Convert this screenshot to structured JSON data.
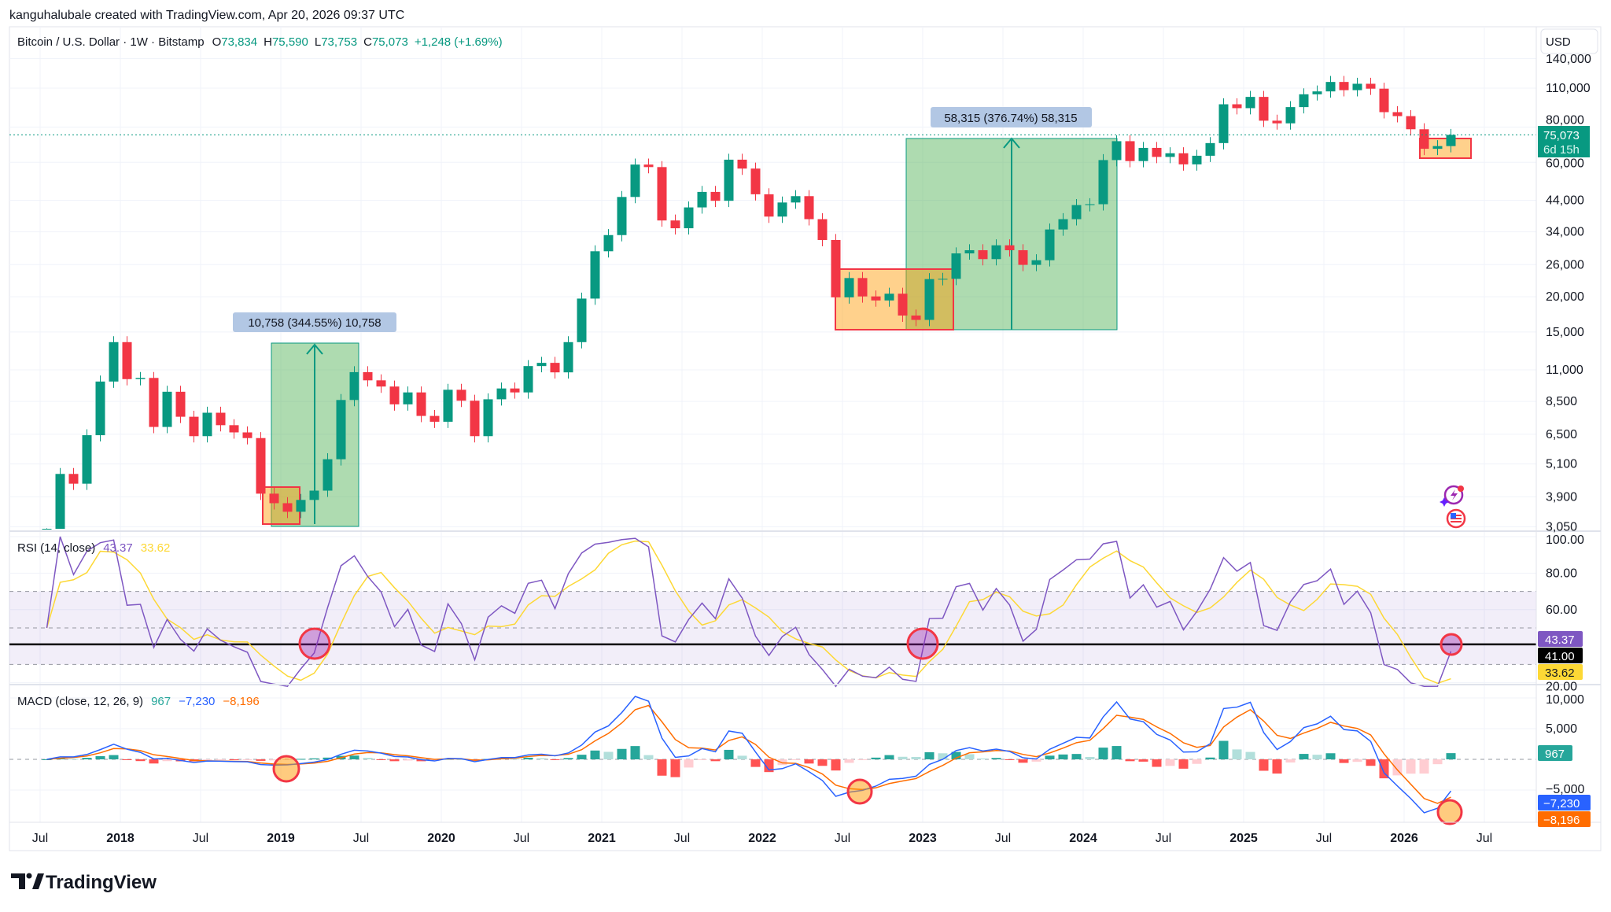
{
  "attribution": "kanguhalubale created with TradingView.com, Apr 20, 2026 09:37 UTC",
  "legend": {
    "symbol": "Bitcoin / U.S. Dollar · 1W · Bitstamp",
    "open_label": "O",
    "open": "73,834",
    "high_label": "H",
    "high": "75,590",
    "low_label": "L",
    "low": "73,753",
    "close_label": "C",
    "close": "75,073",
    "change": "+1,248 (+1.69%)"
  },
  "currency_button": "USD",
  "price_axis": {
    "scale": "log",
    "ticks": [
      "140,000",
      "110,000",
      "80,000",
      "60,000",
      "44,000",
      "34,000",
      "26,000",
      "20,000",
      "15,000",
      "11,000",
      "8,500",
      "6,500",
      "5,100",
      "3,900",
      "3,050"
    ],
    "tick_values": [
      140000,
      110000,
      80000,
      60000,
      44000,
      34000,
      26000,
      20000,
      15000,
      11000,
      8500,
      6500,
      5100,
      3900,
      3050
    ],
    "last_price": "75,073",
    "countdown": "6d 15h"
  },
  "time_axis": [
    "Jul",
    "2018",
    "Jul",
    "2019",
    "Jul",
    "2020",
    "Jul",
    "2021",
    "Jul",
    "2022",
    "Jul",
    "2023",
    "Jul",
    "2024",
    "Jul",
    "2025",
    "Jul",
    "2026",
    "Jul"
  ],
  "annotations": {
    "measure_1": "10,758 (344.55%) 10,758",
    "measure_2": "58,315 (376.74%) 58,315"
  },
  "rsi": {
    "title": "RSI (14, close)",
    "value": "43.37",
    "ma": "33.62",
    "level": "41.00",
    "ticks": [
      "100.00",
      "80.00",
      "60.00",
      "20.00"
    ],
    "tick_values": [
      100,
      80,
      60,
      20
    ],
    "band": [
      30,
      70
    ],
    "level_value": 41
  },
  "macd": {
    "title": "MACD (close, 12, 26, 9)",
    "histogram": "967",
    "macd": "−7,230",
    "signal": "−8,196",
    "ticks": [
      "10,000",
      "5,000",
      "−5,000"
    ],
    "tick_values": [
      10000,
      5000,
      -5000
    ]
  },
  "brand": "TradingView",
  "colors": {
    "up": "#089981",
    "down": "#f23645",
    "rsi": "#7e57c2",
    "rsi_ma": "#fdd835",
    "macd": "#2962ff",
    "signal": "#ff6d00",
    "band": "#7e57c2",
    "long_green": "#4caf50",
    "entry_orange": "#ff9800"
  },
  "chart_data": {
    "type": "candlestick",
    "interval_shown": "1W",
    "note_values": "approximate monthly closes read from chart, USD",
    "start": "2017-07",
    "closes": [
      2870,
      4700,
      4340,
      6450,
      10000,
      13800,
      10200,
      10300,
      6900,
      9200,
      7500,
      6400,
      7750,
      7000,
      6600,
      6300,
      4000,
      3700,
      3450,
      3800,
      4100,
      5300,
      8600,
      10800,
      10100,
      9600,
      8300,
      9150,
      7550,
      7200,
      9350,
      8550,
      6400,
      8650,
      9450,
      9150,
      11350,
      11650,
      10780,
      13800,
      19700,
      29000,
      33100,
      45200,
      58900,
      57700,
      37300,
      35000,
      41500,
      47100,
      43800,
      61300,
      57000,
      46200,
      38500,
      43200,
      45500,
      37700,
      31800,
      19900,
      23300,
      20050,
      19400,
      20500,
      17150,
      16550,
      23100,
      23150,
      28500,
      29250,
      27200,
      30450,
      29250,
      25950,
      26950,
      34650,
      37700,
      42300,
      42600,
      61100,
      71300,
      60600,
      67500,
      62700,
      64600,
      59000,
      63300,
      70200,
      96400,
      93400,
      102400,
      84300,
      82500,
      94200,
      104600,
      107100,
      115700,
      108200,
      114000,
      109500,
      90400,
      87500,
      78600,
      67000,
      68500,
      75073
    ],
    "ylim": [
      3050,
      145000
    ]
  }
}
